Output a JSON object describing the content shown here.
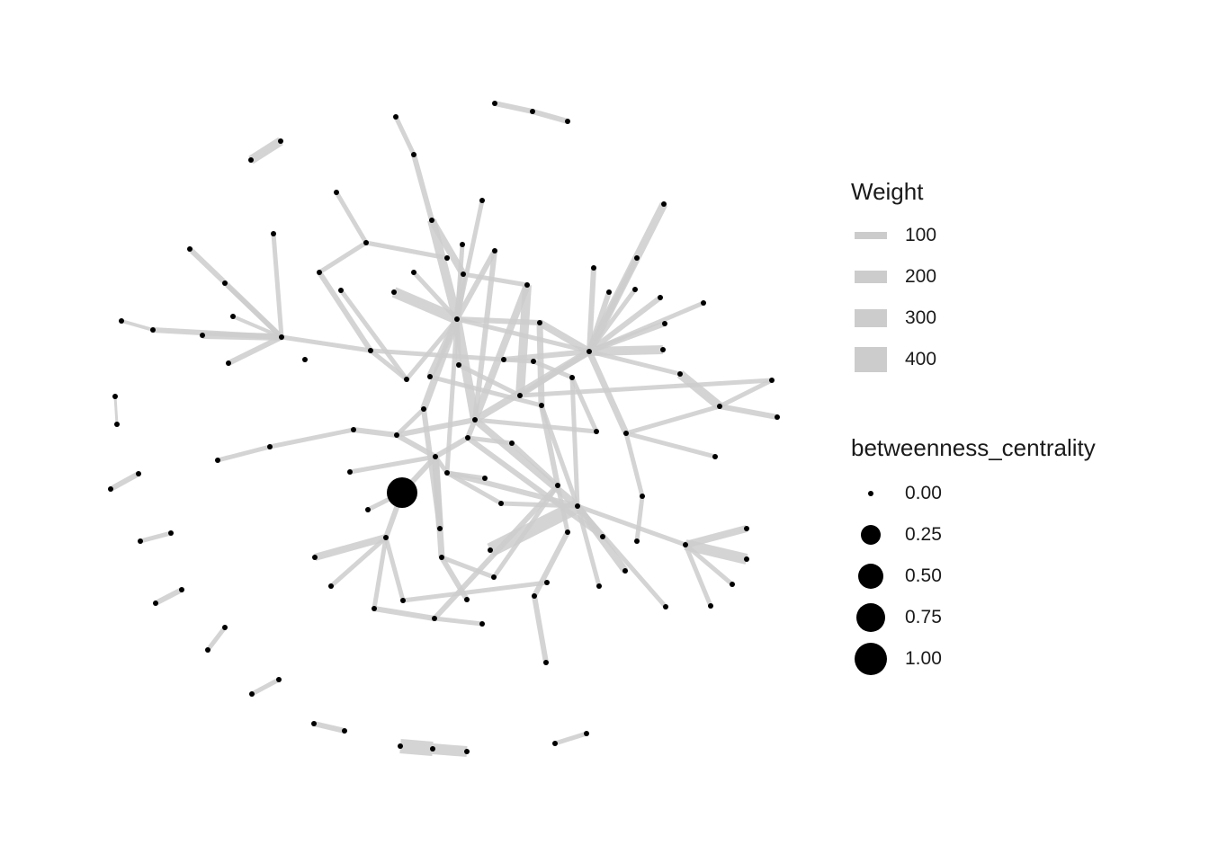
{
  "legend_weight": {
    "title": "Weight",
    "entries": [
      {
        "label": "100",
        "value": 100
      },
      {
        "label": "200",
        "value": 200
      },
      {
        "label": "300",
        "value": 300
      },
      {
        "label": "400",
        "value": 400
      }
    ]
  },
  "legend_centrality": {
    "title": "betweenness_centrality",
    "entries": [
      {
        "label": "0.00",
        "value": 0.0
      },
      {
        "label": "0.25",
        "value": 0.25
      },
      {
        "label": "0.50",
        "value": 0.5
      },
      {
        "label": "0.75",
        "value": 0.75
      },
      {
        "label": "1.00",
        "value": 1.0
      }
    ]
  },
  "colors": {
    "edge": "#cccccc",
    "node": "#000000",
    "text": "#1a1a1a",
    "background": "#ffffff"
  }
}
